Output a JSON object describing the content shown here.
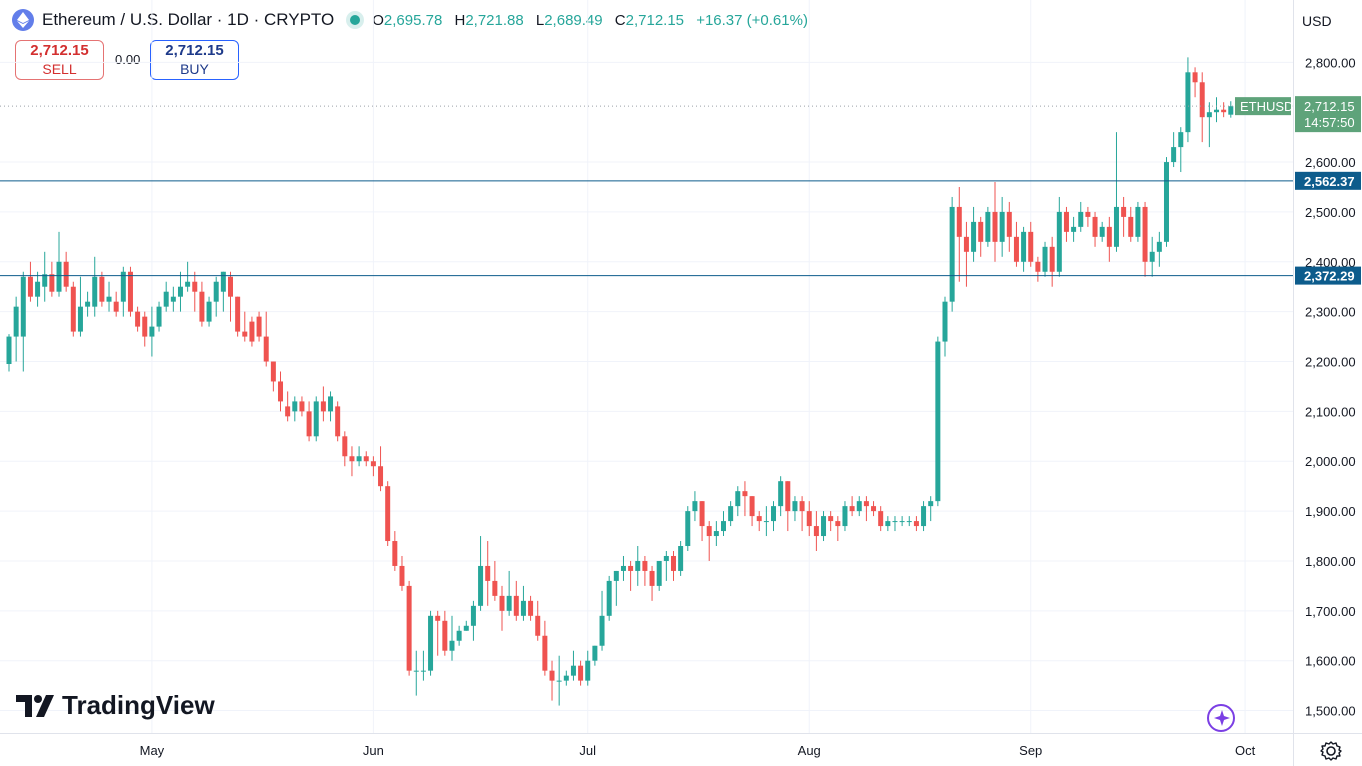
{
  "header": {
    "title": "Ethereum / U.S. Dollar · 1D · CRYPTO",
    "ohlc": [
      {
        "label": "O",
        "value": "2,695.78"
      },
      {
        "label": "H",
        "value": "2,721.88"
      },
      {
        "label": "L",
        "value": "2,689.49"
      },
      {
        "label": "C",
        "value": "2,712.15"
      },
      {
        "label": "",
        "value": "+16.37 (+0.61%)"
      }
    ],
    "symbol_icon": "ethereum-icon",
    "live_status": "market-open-dot"
  },
  "trade": {
    "sell_price": "2,712.15",
    "sell_label": "SELL",
    "spread": "0.00",
    "buy_price": "2,712.15",
    "buy_label": "BUY"
  },
  "currency": "USD",
  "branding": "TradingView",
  "colors": {
    "up": "#26a69a",
    "down": "#ef5350",
    "hline": "#0d5c8c",
    "last_price": "#5ea37a"
  },
  "chart_data": {
    "type": "candlestick",
    "symbol": "ETHUSD",
    "timeframe": "1D",
    "y_ticks": [
      1500,
      1600,
      1700,
      1800,
      1900,
      2000,
      2100,
      2200,
      2300,
      2400,
      2500,
      2600,
      2800
    ],
    "y_tick_labels": [
      "1,500.00",
      "1,600.00",
      "1,700.00",
      "1,800.00",
      "1,900.00",
      "2,000.00",
      "2,100.00",
      "2,200.00",
      "2,300.00",
      "2,400.00",
      "2,500.00",
      "2,600.00",
      "2,800.00"
    ],
    "ylim": [
      1455,
      2925
    ],
    "x_labels": [
      {
        "label": "May",
        "index": 20
      },
      {
        "label": "Jun",
        "index": 51
      },
      {
        "label": "Jul",
        "index": 81
      },
      {
        "label": "Aug",
        "index": 112
      },
      {
        "label": "Sep",
        "index": 143
      },
      {
        "label": "Oct",
        "index": 173
      }
    ],
    "horizontal_lines": [
      {
        "value": 2562.37,
        "label": "2,562.37"
      },
      {
        "value": 2372.29,
        "label": "2,372.29"
      }
    ],
    "last_price": {
      "value": 2712.15,
      "label": "2,712.15",
      "symbol": "ETHUSD",
      "countdown": "14:57:50"
    },
    "candles": [
      [
        2195,
        2250,
        2180,
        2255
      ],
      [
        2250,
        2310,
        2200,
        2330
      ],
      [
        2250,
        2370,
        2180,
        2380
      ],
      [
        2370,
        2330,
        2320,
        2400
      ],
      [
        2330,
        2360,
        2310,
        2380
      ],
      [
        2350,
        2375,
        2320,
        2420
      ],
      [
        2375,
        2340,
        2330,
        2400
      ],
      [
        2340,
        2400,
        2330,
        2460
      ],
      [
        2400,
        2350,
        2340,
        2420
      ],
      [
        2350,
        2260,
        2250,
        2360
      ],
      [
        2260,
        2310,
        2250,
        2370
      ],
      [
        2310,
        2320,
        2290,
        2340
      ],
      [
        2310,
        2370,
        2290,
        2410
      ],
      [
        2370,
        2320,
        2310,
        2380
      ],
      [
        2320,
        2330,
        2300,
        2360
      ],
      [
        2320,
        2300,
        2290,
        2340
      ],
      [
        2320,
        2380,
        2290,
        2390
      ],
      [
        2380,
        2300,
        2290,
        2390
      ],
      [
        2300,
        2270,
        2260,
        2310
      ],
      [
        2290,
        2250,
        2230,
        2300
      ],
      [
        2250,
        2270,
        2210,
        2310
      ],
      [
        2270,
        2310,
        2260,
        2320
      ],
      [
        2310,
        2340,
        2300,
        2360
      ],
      [
        2320,
        2330,
        2300,
        2350
      ],
      [
        2330,
        2350,
        2300,
        2380
      ],
      [
        2350,
        2360,
        2340,
        2400
      ],
      [
        2360,
        2340,
        2300,
        2380
      ],
      [
        2340,
        2280,
        2270,
        2360
      ],
      [
        2280,
        2320,
        2270,
        2330
      ],
      [
        2320,
        2360,
        2290,
        2370
      ],
      [
        2340,
        2380,
        2300,
        2380
      ],
      [
        2370,
        2330,
        2280,
        2380
      ],
      [
        2330,
        2260,
        2250,
        2330
      ],
      [
        2260,
        2250,
        2240,
        2300
      ],
      [
        2280,
        2240,
        2230,
        2290
      ],
      [
        2290,
        2250,
        2240,
        2300
      ],
      [
        2250,
        2200,
        2190,
        2300
      ],
      [
        2200,
        2160,
        2140,
        2200
      ],
      [
        2160,
        2120,
        2100,
        2180
      ],
      [
        2110,
        2090,
        2080,
        2140
      ],
      [
        2100,
        2120,
        2080,
        2130
      ],
      [
        2120,
        2100,
        2090,
        2130
      ],
      [
        2100,
        2050,
        2040,
        2120
      ],
      [
        2050,
        2120,
        2040,
        2130
      ],
      [
        2120,
        2100,
        2080,
        2150
      ],
      [
        2100,
        2130,
        2080,
        2140
      ],
      [
        2110,
        2050,
        2040,
        2120
      ],
      [
        2050,
        2010,
        1990,
        2060
      ],
      [
        2010,
        2000,
        1970,
        2030
      ],
      [
        2000,
        2010,
        1990,
        2030
      ],
      [
        2010,
        2000,
        1990,
        2020
      ],
      [
        2000,
        1990,
        1970,
        2010
      ],
      [
        1990,
        1950,
        1940,
        2030
      ],
      [
        1950,
        1840,
        1830,
        1960
      ],
      [
        1840,
        1790,
        1780,
        1860
      ],
      [
        1790,
        1750,
        1740,
        1810
      ],
      [
        1750,
        1580,
        1570,
        1760
      ],
      [
        1580,
        1580,
        1530,
        1620
      ],
      [
        1580,
        1580,
        1560,
        1620
      ],
      [
        1580,
        1690,
        1570,
        1700
      ],
      [
        1690,
        1680,
        1610,
        1700
      ],
      [
        1680,
        1620,
        1610,
        1700
      ],
      [
        1620,
        1640,
        1600,
        1690
      ],
      [
        1640,
        1660,
        1630,
        1670
      ],
      [
        1660,
        1670,
        1660,
        1680
      ],
      [
        1670,
        1710,
        1640,
        1720
      ],
      [
        1710,
        1790,
        1700,
        1850
      ],
      [
        1790,
        1760,
        1710,
        1840
      ],
      [
        1760,
        1730,
        1720,
        1800
      ],
      [
        1730,
        1700,
        1660,
        1750
      ],
      [
        1700,
        1730,
        1690,
        1780
      ],
      [
        1730,
        1690,
        1680,
        1760
      ],
      [
        1690,
        1720,
        1680,
        1750
      ],
      [
        1720,
        1690,
        1680,
        1730
      ],
      [
        1690,
        1650,
        1640,
        1720
      ],
      [
        1650,
        1580,
        1570,
        1680
      ],
      [
        1580,
        1560,
        1520,
        1600
      ],
      [
        1560,
        1560,
        1510,
        1610
      ],
      [
        1560,
        1570,
        1550,
        1580
      ],
      [
        1570,
        1590,
        1560,
        1620
      ],
      [
        1590,
        1560,
        1550,
        1600
      ],
      [
        1560,
        1600,
        1550,
        1620
      ],
      [
        1600,
        1630,
        1590,
        1630
      ],
      [
        1630,
        1690,
        1620,
        1740
      ],
      [
        1690,
        1760,
        1680,
        1770
      ],
      [
        1760,
        1780,
        1710,
        1780
      ],
      [
        1780,
        1790,
        1760,
        1810
      ],
      [
        1790,
        1780,
        1740,
        1800
      ],
      [
        1780,
        1800,
        1750,
        1830
      ],
      [
        1800,
        1780,
        1750,
        1810
      ],
      [
        1780,
        1750,
        1720,
        1790
      ],
      [
        1750,
        1800,
        1740,
        1800
      ],
      [
        1800,
        1810,
        1760,
        1820
      ],
      [
        1810,
        1780,
        1760,
        1820
      ],
      [
        1780,
        1830,
        1770,
        1840
      ],
      [
        1830,
        1900,
        1820,
        1910
      ],
      [
        1900,
        1920,
        1880,
        1940
      ],
      [
        1920,
        1870,
        1840,
        1920
      ],
      [
        1870,
        1850,
        1800,
        1880
      ],
      [
        1850,
        1860,
        1830,
        1880
      ],
      [
        1860,
        1880,
        1850,
        1900
      ],
      [
        1880,
        1910,
        1870,
        1920
      ],
      [
        1910,
        1940,
        1890,
        1950
      ],
      [
        1940,
        1930,
        1890,
        1960
      ],
      [
        1930,
        1890,
        1870,
        1930
      ],
      [
        1890,
        1880,
        1860,
        1900
      ],
      [
        1880,
        1880,
        1850,
        1910
      ],
      [
        1880,
        1910,
        1860,
        1920
      ],
      [
        1910,
        1960,
        1890,
        1970
      ],
      [
        1960,
        1900,
        1860,
        1960
      ],
      [
        1900,
        1920,
        1880,
        1930
      ],
      [
        1920,
        1900,
        1860,
        1930
      ],
      [
        1900,
        1870,
        1850,
        1920
      ],
      [
        1870,
        1850,
        1820,
        1900
      ],
      [
        1850,
        1890,
        1840,
        1900
      ],
      [
        1890,
        1880,
        1860,
        1900
      ],
      [
        1880,
        1870,
        1840,
        1890
      ],
      [
        1870,
        1910,
        1860,
        1920
      ],
      [
        1910,
        1900,
        1890,
        1930
      ],
      [
        1900,
        1920,
        1890,
        1930
      ],
      [
        1920,
        1910,
        1880,
        1930
      ],
      [
        1910,
        1900,
        1890,
        1920
      ],
      [
        1900,
        1870,
        1860,
        1910
      ],
      [
        1870,
        1880,
        1860,
        1890
      ],
      [
        1880,
        1880,
        1860,
        1890
      ],
      [
        1880,
        1880,
        1870,
        1890
      ],
      [
        1880,
        1880,
        1870,
        1890
      ],
      [
        1880,
        1870,
        1860,
        1890
      ],
      [
        1870,
        1910,
        1860,
        1920
      ],
      [
        1910,
        1920,
        1880,
        1930
      ],
      [
        1920,
        2240,
        1910,
        2250
      ],
      [
        2240,
        2320,
        2210,
        2330
      ],
      [
        2320,
        2510,
        2300,
        2530
      ],
      [
        2510,
        2450,
        2360,
        2550
      ],
      [
        2450,
        2420,
        2350,
        2480
      ],
      [
        2420,
        2480,
        2400,
        2510
      ],
      [
        2480,
        2440,
        2410,
        2490
      ],
      [
        2440,
        2500,
        2430,
        2510
      ],
      [
        2500,
        2440,
        2400,
        2560
      ],
      [
        2440,
        2500,
        2410,
        2530
      ],
      [
        2500,
        2450,
        2420,
        2520
      ],
      [
        2450,
        2400,
        2390,
        2480
      ],
      [
        2400,
        2460,
        2380,
        2470
      ],
      [
        2460,
        2400,
        2390,
        2480
      ],
      [
        2400,
        2380,
        2360,
        2410
      ],
      [
        2380,
        2430,
        2370,
        2440
      ],
      [
        2430,
        2380,
        2350,
        2450
      ],
      [
        2380,
        2500,
        2370,
        2530
      ],
      [
        2500,
        2460,
        2440,
        2510
      ],
      [
        2460,
        2470,
        2440,
        2490
      ],
      [
        2470,
        2500,
        2460,
        2520
      ],
      [
        2500,
        2490,
        2470,
        2510
      ],
      [
        2490,
        2450,
        2430,
        2500
      ],
      [
        2450,
        2470,
        2440,
        2480
      ],
      [
        2470,
        2430,
        2400,
        2490
      ],
      [
        2430,
        2510,
        2420,
        2660
      ],
      [
        2510,
        2490,
        2450,
        2530
      ],
      [
        2490,
        2450,
        2440,
        2510
      ],
      [
        2450,
        2510,
        2440,
        2520
      ],
      [
        2510,
        2400,
        2370,
        2520
      ],
      [
        2400,
        2420,
        2370,
        2450
      ],
      [
        2420,
        2440,
        2390,
        2460
      ],
      [
        2440,
        2600,
        2430,
        2610
      ],
      [
        2600,
        2630,
        2590,
        2660
      ],
      [
        2630,
        2660,
        2580,
        2670
      ],
      [
        2660,
        2780,
        2640,
        2810
      ],
      [
        2780,
        2760,
        2730,
        2790
      ],
      [
        2760,
        2690,
        2640,
        2780
      ],
      [
        2690,
        2700,
        2630,
        2720
      ],
      [
        2700,
        2705,
        2680,
        2730
      ],
      [
        2705,
        2700,
        2690,
        2720
      ],
      [
        2695,
        2712,
        2689,
        2722
      ]
    ]
  }
}
